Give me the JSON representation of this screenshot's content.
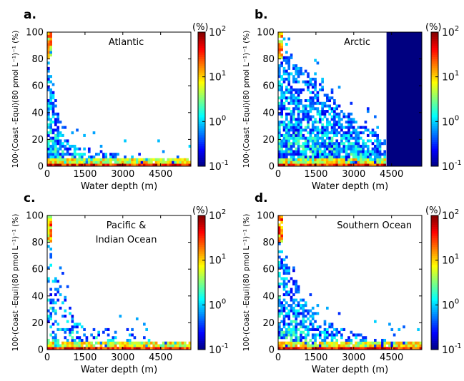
{
  "chart_data": [
    {
      "type": "heatmap",
      "panel_label": "a.",
      "title": "Atlantic",
      "xlabel": "Water depth (m)",
      "ylabel": "100·(Coast -Equi)(80 pmol L⁻¹)⁻¹ (%)",
      "xlim": [
        0,
        5700
      ],
      "ylim": [
        0,
        100
      ],
      "xticks": [
        "0",
        "1500",
        "3000",
        "4500"
      ],
      "yticks": [
        "0",
        "20",
        "40",
        "60",
        "80",
        "100"
      ],
      "colorbar": {
        "unit": "(%)",
        "scale": "log",
        "ticks": [
          "10",
          "10",
          "10",
          "10"
        ],
        "exponents": [
          "-1",
          "0",
          "1",
          "2"
        ],
        "range": [
          0.1,
          100
        ]
      },
      "density": {
        "near_surface_curve": [
          [
            0,
            98
          ],
          [
            200,
            70
          ],
          [
            400,
            40
          ],
          [
            800,
            20
          ],
          [
            1500,
            14
          ],
          [
            3000,
            8
          ],
          [
            4500,
            5
          ],
          [
            5600,
            3
          ]
        ],
        "floor_band_max_x": 5600,
        "scatter_extent": 0.9
      }
    },
    {
      "type": "heatmap",
      "panel_label": "b.",
      "title": "Arctic",
      "xlabel": "Water depth (m)",
      "ylabel": "100·(Coast -Equi)(80 pmol L⁻¹)⁻¹ (%)",
      "xlim": [
        0,
        5700
      ],
      "ylim": [
        0,
        100
      ],
      "xticks": [
        "0",
        "1500",
        "3000",
        "4500"
      ],
      "yticks": [
        "0",
        "20",
        "40",
        "60",
        "80",
        "100"
      ],
      "colorbar": {
        "unit": "(%)",
        "scale": "log",
        "ticks": [
          "10",
          "10",
          "10",
          "10"
        ],
        "exponents": [
          "-1",
          "0",
          "1",
          "2"
        ],
        "range": [
          0.1,
          100
        ]
      },
      "density": {
        "near_surface_curve": [
          [
            0,
            95
          ],
          [
            500,
            80
          ],
          [
            1500,
            65
          ],
          [
            2500,
            45
          ],
          [
            3500,
            30
          ],
          [
            4200,
            20
          ]
        ],
        "floor_band_max_x": 4200,
        "scatter_extent": 1.0,
        "saturated_block_x": [
          4300,
          5700
        ],
        "saturated_value": 0.1
      }
    },
    {
      "type": "heatmap",
      "panel_label": "c.",
      "title": "Pacific &\nIndian Ocean",
      "xlabel": "Water depth (m)",
      "ylabel": "100·(Coast -Equi)(80 pmol L⁻¹)⁻¹ (%)",
      "xlim": [
        0,
        5700
      ],
      "ylim": [
        0,
        100
      ],
      "xticks": [
        "0",
        "1500",
        "3000",
        "4500"
      ],
      "yticks": [
        "0",
        "20",
        "40",
        "60",
        "80",
        "100"
      ],
      "colorbar": {
        "unit": "(%)",
        "scale": "log",
        "ticks": [
          "10",
          "10",
          "10",
          "10"
        ],
        "exponents": [
          "-1",
          "0",
          "1",
          "2"
        ],
        "range": [
          0.1,
          100
        ]
      },
      "density": {
        "near_surface_curve": [
          [
            0,
            98
          ],
          [
            300,
            60
          ],
          [
            800,
            35
          ],
          [
            1500,
            20
          ],
          [
            3000,
            12
          ],
          [
            4500,
            8
          ],
          [
            5600,
            4
          ]
        ],
        "floor_band_max_x": 5600,
        "scatter_extent": 0.5
      }
    },
    {
      "type": "heatmap",
      "panel_label": "d.",
      "title": "Southern Ocean",
      "xlabel": "Water depth (m)",
      "ylabel": "100·(Coast -Equi)(80 pmol L⁻¹)⁻¹ (%)",
      "xlim": [
        0,
        5700
      ],
      "ylim": [
        0,
        100
      ],
      "xticks": [
        "0",
        "1500",
        "3000",
        "4500"
      ],
      "yticks": [
        "0",
        "20",
        "40",
        "60",
        "80",
        "100"
      ],
      "colorbar": {
        "unit": "(%)",
        "scale": "log",
        "ticks": [
          "10",
          "10",
          "10",
          "10"
        ],
        "exponents": [
          "-1",
          "0",
          "1",
          "2"
        ],
        "range": [
          0.1,
          100
        ]
      },
      "density": {
        "near_surface_curve": [
          [
            0,
            98
          ],
          [
            300,
            75
          ],
          [
            700,
            55
          ],
          [
            1200,
            35
          ],
          [
            2000,
            20
          ],
          [
            3500,
            10
          ],
          [
            5600,
            3
          ]
        ],
        "floor_band_max_x": 5600,
        "scatter_extent": 0.8
      }
    }
  ]
}
